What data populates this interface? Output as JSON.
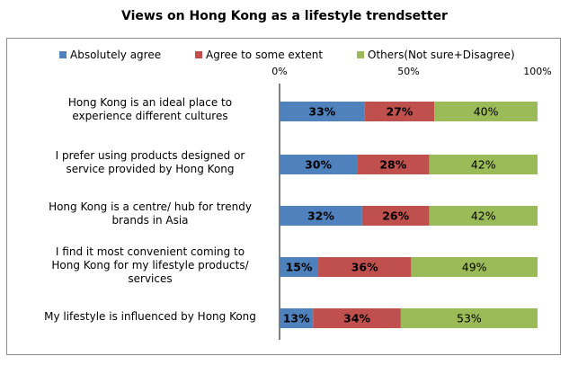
{
  "chart_data": {
    "type": "bar",
    "orientation": "horizontal",
    "stacked": true,
    "title": "Views on Hong Kong as a lifestyle trendsetter",
    "categories": [
      [
        "Hong Kong is an ideal place to",
        "experience different cultures"
      ],
      [
        "I prefer using products designed or",
        "service provided by Hong Kong"
      ],
      [
        "Hong Kong is a centre/ hub for trendy",
        "brands in Asia"
      ],
      [
        "I find it most convenient coming to",
        "Hong Kong for my lifestyle products/",
        "services"
      ],
      [
        "My lifestyle is influenced by Hong Kong"
      ]
    ],
    "series": [
      {
        "name": "Absolutely agree",
        "color": "#4f81bd",
        "values": [
          33,
          30,
          32,
          15,
          13
        ]
      },
      {
        "name": "Agree to some extent",
        "color": "#c0504d",
        "values": [
          27,
          28,
          26,
          36,
          34
        ]
      },
      {
        "name": "Others(Not sure+Disagree)",
        "color": "#9bbb59",
        "values": [
          40,
          42,
          42,
          49,
          53
        ]
      }
    ],
    "xlim": [
      0,
      100
    ],
    "ticks": [
      "0%",
      "50%",
      "100%"
    ],
    "legend_position": "top",
    "grid": false
  }
}
